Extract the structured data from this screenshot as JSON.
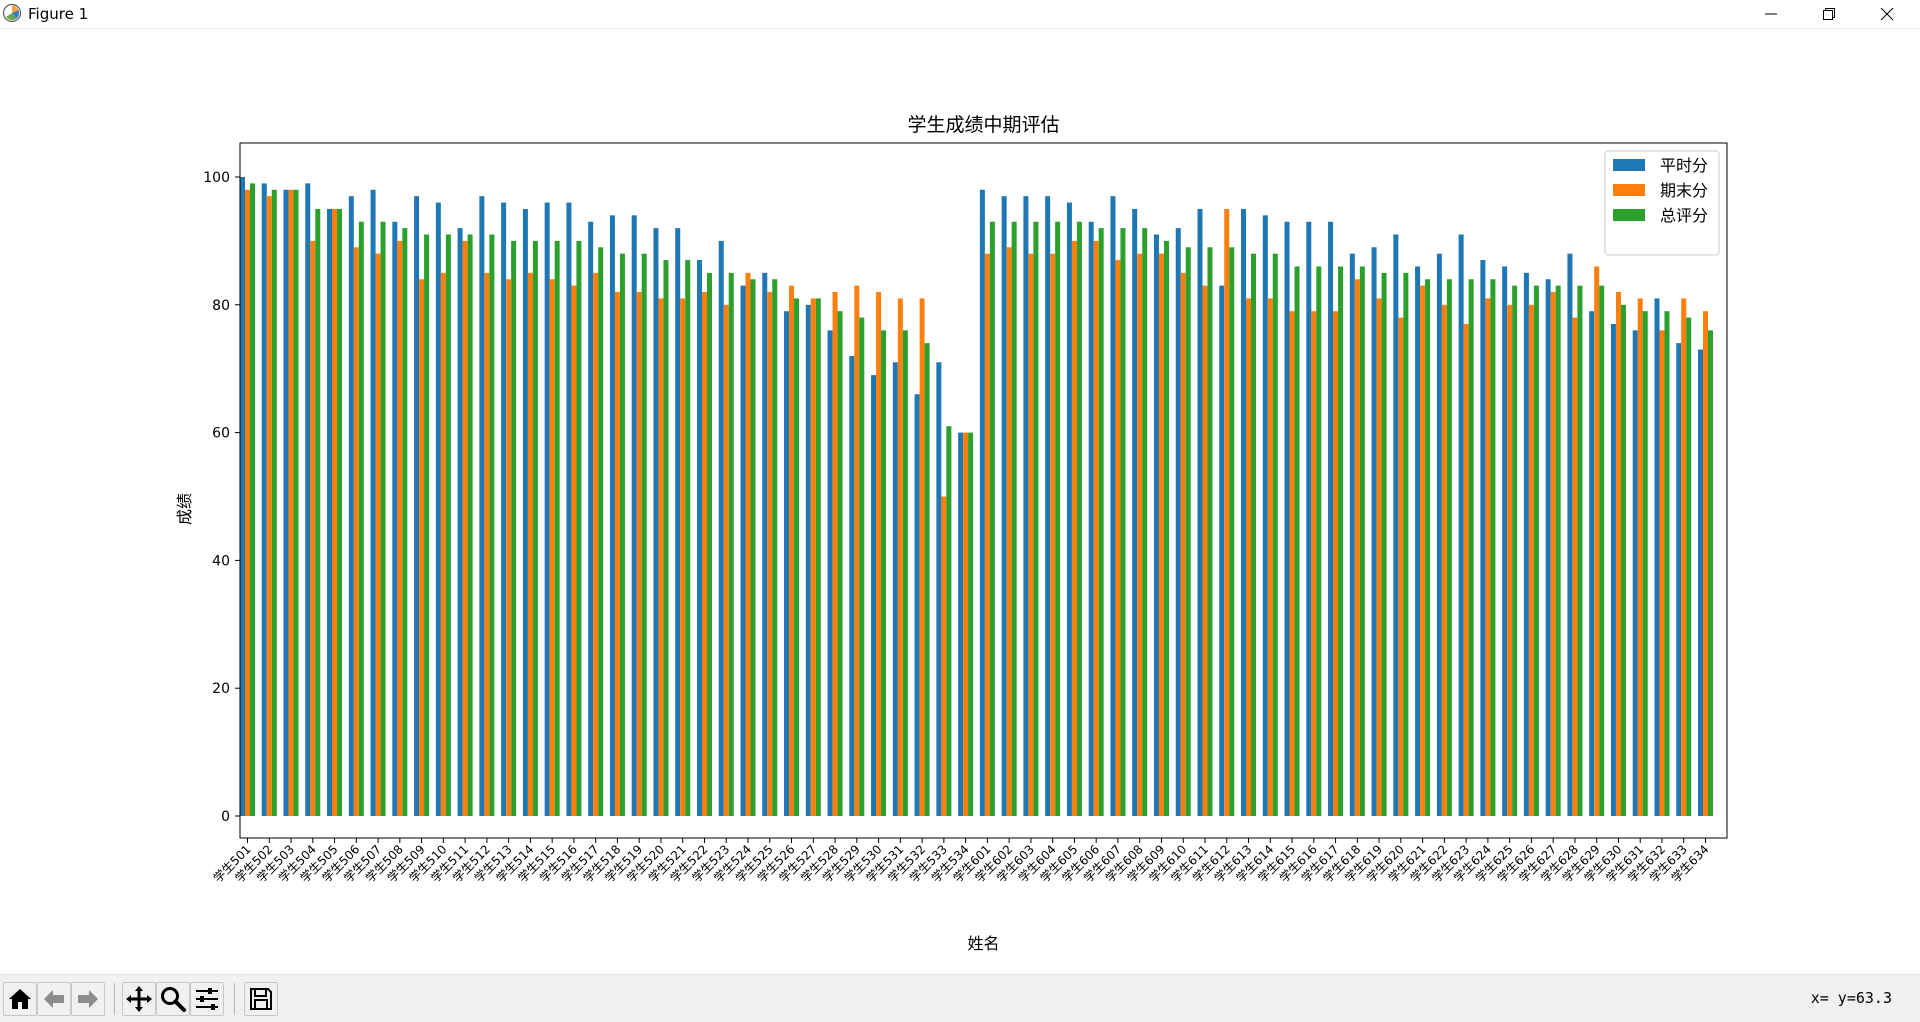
{
  "window": {
    "title": "Figure 1",
    "minimize_icon": "minimize-icon",
    "restore_icon": "restore-icon",
    "close_icon": "close-icon"
  },
  "toolbar": {
    "items": [
      "home-icon",
      "back-arrow-icon",
      "forward-arrow-icon",
      "pan-icon",
      "zoom-icon",
      "configure-subplots-icon",
      "save-icon"
    ],
    "coords": "x= y=63.3"
  },
  "colors": {
    "series1": "#1f77b4",
    "series2": "#ff7f0e",
    "series3": "#2ca02c"
  },
  "chart_data": {
    "type": "bar",
    "title": "学生成绩中期评估",
    "xlabel": "姓名",
    "ylabel": "成绩",
    "ylim": [
      0,
      105
    ],
    "yticks": [
      0,
      20,
      40,
      60,
      80,
      100
    ],
    "grid": false,
    "legend_position": "top-right",
    "categories": [
      "学生501",
      "学生502",
      "学生503",
      "学生504",
      "学生505",
      "学生506",
      "学生507",
      "学生508",
      "学生509",
      "学生510",
      "学生511",
      "学生512",
      "学生513",
      "学生514",
      "学生515",
      "学生516",
      "学生517",
      "学生518",
      "学生519",
      "学生520",
      "学生521",
      "学生522",
      "学生523",
      "学生524",
      "学生525",
      "学生526",
      "学生527",
      "学生528",
      "学生529",
      "学生530",
      "学生531",
      "学生532",
      "学生533",
      "学生534",
      "学生601",
      "学生602",
      "学生603",
      "学生604",
      "学生605",
      "学生606",
      "学生607",
      "学生608",
      "学生609",
      "学生610",
      "学生611",
      "学生612",
      "学生613",
      "学生614",
      "学生615",
      "学生616",
      "学生617",
      "学生618",
      "学生619",
      "学生620",
      "学生621",
      "学生622",
      "学生623",
      "学生624",
      "学生625",
      "学生626",
      "学生627",
      "学生628",
      "学生629",
      "学生630",
      "学生631",
      "学生632",
      "学生633",
      "学生634"
    ],
    "series": [
      {
        "name": "平时分",
        "values": [
          100,
          99,
          98,
          99,
          95,
          97,
          98,
          93,
          97,
          96,
          92,
          97,
          96,
          95,
          96,
          96,
          93,
          94,
          94,
          92,
          92,
          87,
          90,
          83,
          85,
          79,
          80,
          76,
          72,
          69,
          71,
          66,
          71,
          60,
          98,
          97,
          97,
          97,
          96,
          93,
          97,
          95,
          91,
          92,
          95,
          83,
          95,
          94,
          93,
          93,
          93,
          88,
          89,
          91,
          86,
          88,
          91,
          87,
          86,
          85,
          84,
          88,
          79,
          77,
          76,
          81,
          74,
          73
        ]
      },
      {
        "name": "期末分",
        "values": [
          98,
          97,
          98,
          90,
          95,
          89,
          88,
          90,
          84,
          85,
          90,
          85,
          84,
          85,
          84,
          83,
          85,
          82,
          82,
          81,
          81,
          82,
          80,
          85,
          82,
          83,
          81,
          82,
          83,
          82,
          81,
          81,
          50,
          60,
          88,
          89,
          88,
          88,
          90,
          90,
          87,
          88,
          88,
          85,
          83,
          95,
          81,
          81,
          79,
          79,
          79,
          84,
          81,
          78,
          83,
          80,
          77,
          81,
          80,
          80,
          82,
          78,
          86,
          82,
          81,
          76,
          81,
          79
        ]
      },
      {
        "name": "总评分",
        "values": [
          99,
          98,
          98,
          95,
          95,
          93,
          93,
          92,
          91,
          91,
          91,
          91,
          90,
          90,
          90,
          90,
          89,
          88,
          88,
          87,
          87,
          85,
          85,
          84,
          84,
          81,
          81,
          79,
          78,
          76,
          76,
          74,
          61,
          60,
          93,
          93,
          93,
          93,
          93,
          92,
          92,
          92,
          90,
          89,
          89,
          89,
          88,
          88,
          86,
          86,
          86,
          86,
          85,
          85,
          84,
          84,
          84,
          84,
          83,
          83,
          83,
          83,
          83,
          80,
          79,
          79,
          78,
          76
        ]
      }
    ]
  }
}
